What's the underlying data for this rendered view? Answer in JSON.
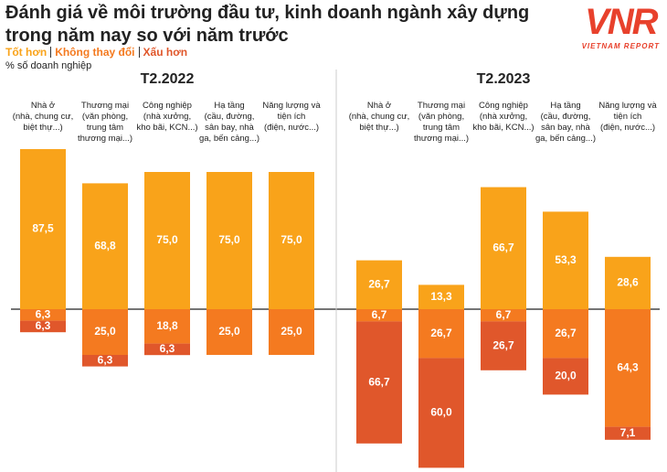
{
  "chart_data": {
    "type": "bar",
    "title": "Đánh giá về môi trường đầu tư, kinh doanh ngành xây dựng\ntrong năm nay so với năm trước",
    "subtitle": "% số doanh nghiệp",
    "logo": {
      "mark": "VNR",
      "text": "VIETNAM REPORT"
    },
    "facets": [
      "T2.2022",
      "T2.2023"
    ],
    "categories": [
      "Nhà ở\n(nhà, chung cư,\nbiệt thự...)",
      "Thương mại\n(văn phòng,\ntrung tâm\nthương mại...)",
      "Công nghiệp\n(nhà xưởng,\nkho bãi, KCN...)",
      "Hạ tầng\n(cầu, đường,\nsân bay, nhà\nga, bến cảng...)",
      "Năng lượng và\ntiện ích\n(điện, nước...)",
      "Nhà ở\n(nhà, chung cư,\nbiệt thự...)",
      "Thương mại\n(văn phòng,\ntrung tâm\nthương mại...)",
      "Công nghiệp\n(nhà xưởng,\nkho bãi, KCN...)",
      "Hạ tầng\n(cầu, đường,\nsân bay, nhà\nga, bến cảng...)",
      "Năng lượng và\ntiện ích\n(điện, nước...)"
    ],
    "series": [
      {
        "name": "Tốt hơn",
        "color": "#f9a31a",
        "values": [
          87.5,
          68.8,
          75.0,
          75.0,
          75.0,
          26.7,
          13.3,
          66.7,
          53.3,
          28.6
        ],
        "value_labels": [
          "87,5",
          "68,8",
          "75,0",
          "75,0",
          "75,0",
          "26,7",
          "13,3",
          "66,7",
          "53,3",
          "28,6"
        ]
      },
      {
        "name": "Không thay đổi",
        "color": "#f47a20",
        "values": [
          6.3,
          25.0,
          18.8,
          25.0,
          25.0,
          6.7,
          26.7,
          6.7,
          26.7,
          64.3
        ],
        "value_labels": [
          "6,3",
          "25,0",
          "18,8",
          "25,0",
          "25,0",
          "6,7",
          "26,7",
          "6,7",
          "26,7",
          "64,3"
        ]
      },
      {
        "name": "Xấu hơn",
        "color": "#e0572b",
        "values": [
          6.3,
          6.3,
          6.3,
          null,
          null,
          66.7,
          60.0,
          26.7,
          20.0,
          7.1
        ],
        "value_labels": [
          "6,3",
          "6,3",
          "6,3",
          null,
          null,
          "66,7",
          "60,0",
          "26,7",
          "20,0",
          "7,1"
        ]
      }
    ]
  }
}
